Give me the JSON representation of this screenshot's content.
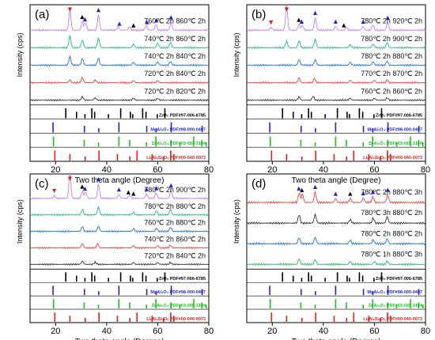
{
  "figure": {
    "xlabel": "Two theta angle (Degree)",
    "ylabel": "Intensity (cps)"
  },
  "colors": {
    "ZrO2": "#000000",
    "MgAl2O4": "#1f1fd6",
    "ZnAl2O4": "#19c319",
    "LiAlSi": "#e51c1c",
    "marker_LiAlSi": "#e51c1c",
    "marker_MgAl2O4": "#1f1fd6",
    "marker_ZrO2": "#000000"
  },
  "reference_patterns": [
    {
      "id": "ZrO2",
      "label": "ZrO₂ PDF#97-006-6785",
      "peaks": [
        24.0,
        28.2,
        31.5,
        34.2,
        35.3,
        40.7,
        45.5,
        49.3,
        50.2,
        54.1,
        55.4,
        59.8,
        62.8
      ]
    },
    {
      "id": "MgAl2O4",
      "label": "MgAl₂O₄ PDF#98-000-0407",
      "peaks": [
        19.0,
        31.3,
        36.9,
        44.8,
        55.7,
        59.4,
        65.3,
        77.4
      ]
    },
    {
      "id": "ZnAl2O4",
      "label": "ZnAl₂O₄ PDF#03-065-3104",
      "peaks": [
        19.2,
        31.2,
        36.8,
        44.8,
        49.0,
        55.6,
        59.3,
        65.2,
        68.7,
        74.1,
        77.3,
        79.0
      ]
    },
    {
      "id": "LiAlSi",
      "label": "LiₓAlₓSiₓOₓ PDF#00-040-0073",
      "peaks": [
        19.7,
        25.6,
        31.6,
        37.0,
        44.2,
        49.1,
        51.9,
        57.8,
        62.3,
        65.1,
        66.3
      ]
    }
  ],
  "chart_data": [
    {
      "type": "line",
      "panel": "(a)",
      "xlabel": "Two theta angle (Degree)",
      "ylabel": "Intensity (cps)",
      "xlim": [
        10,
        80
      ],
      "xticks": [
        20,
        40,
        60,
        80
      ],
      "series": [
        {
          "name": "720℃ 2h 820℃ 2h",
          "color": "#333333",
          "peaks": [
            {
              "x": 30.5,
              "h": 0.35
            },
            {
              "x": 35.5,
              "h": 0.25
            },
            {
              "x": 50.5,
              "h": 0.2
            },
            {
              "x": 60,
              "h": 0.18
            }
          ]
        },
        {
          "name": "720℃ 2h 840℃ 2h",
          "color": "#ff3b3b",
          "peaks": [
            {
              "x": 25.6,
              "h": 0.3
            },
            {
              "x": 30.5,
              "h": 0.55
            },
            {
              "x": 35.5,
              "h": 0.3
            },
            {
              "x": 50.5,
              "h": 0.2
            },
            {
              "x": 60,
              "h": 0.2
            }
          ]
        },
        {
          "name": "740℃ 2h 840℃ 2h",
          "color": "#1f6fe0",
          "peaks": [
            {
              "x": 25.6,
              "h": 0.9
            },
            {
              "x": 30.5,
              "h": 0.7
            },
            {
              "x": 36.8,
              "h": 0.75
            },
            {
              "x": 50.5,
              "h": 0.3
            },
            {
              "x": 60,
              "h": 0.35
            },
            {
              "x": 65,
              "h": 0.4
            }
          ]
        },
        {
          "name": "740℃ 2h 860℃ 2h",
          "color": "#1fbf6e",
          "peaks": [
            {
              "x": 25.6,
              "h": 1.2
            },
            {
              "x": 30.5,
              "h": 0.8
            },
            {
              "x": 36.8,
              "h": 1.0
            },
            {
              "x": 50.5,
              "h": 0.35
            },
            {
              "x": 60,
              "h": 0.45
            },
            {
              "x": 65,
              "h": 0.55
            }
          ]
        },
        {
          "name": "760℃ 2h 860℃ 2h",
          "color": "#c77dff",
          "peaks": [
            {
              "x": 25.6,
              "h": 2.2
            },
            {
              "x": 30.5,
              "h": 0.9
            },
            {
              "x": 31.8,
              "h": 0.8
            },
            {
              "x": 36.8,
              "h": 1.6
            },
            {
              "x": 44.5,
              "h": 0.4
            },
            {
              "x": 49,
              "h": 0.35
            },
            {
              "x": 55.5,
              "h": 0.45
            },
            {
              "x": 59.3,
              "h": 0.6
            },
            {
              "x": 65.2,
              "h": 0.85
            }
          ]
        }
      ],
      "markers": [
        {
          "x": 25.6,
          "type": "LiAlSi"
        },
        {
          "x": 30.4,
          "type": "ZrO2"
        },
        {
          "x": 31.5,
          "type": "MgAl2O4"
        },
        {
          "x": 36.8,
          "type": "MgAl2O4"
        },
        {
          "x": 45,
          "type": "MgAl2O4"
        },
        {
          "x": 50.5,
          "type": "ZrO2"
        },
        {
          "x": 55.8,
          "type": "MgAl2O4"
        },
        {
          "x": 59.5,
          "type": "MgAl2O4"
        },
        {
          "x": 65.2,
          "type": "MgAl2O4"
        }
      ]
    },
    {
      "type": "line",
      "panel": "(b)",
      "xlabel": "Two theta angle (Degree)",
      "ylabel": "Intensity (cps)",
      "xlim": [
        10,
        80
      ],
      "xticks": [
        20,
        40,
        60,
        80
      ],
      "series": [
        {
          "name": "760℃ 2h 860℃ 2h",
          "color": "#333333",
          "peaks": [
            {
              "x": 30.5,
              "h": 0.35
            },
            {
              "x": 36,
              "h": 0.4
            },
            {
              "x": 50.5,
              "h": 0.2
            },
            {
              "x": 60,
              "h": 0.2
            },
            {
              "x": 65,
              "h": 0.25
            }
          ]
        },
        {
          "name": "770℃ 2h 870℃ 2h",
          "color": "#ff3b3b",
          "peaks": [
            {
              "x": 30.5,
              "h": 0.5
            },
            {
              "x": 36.5,
              "h": 0.45
            },
            {
              "x": 50.5,
              "h": 0.25
            },
            {
              "x": 60,
              "h": 0.25
            },
            {
              "x": 65,
              "h": 0.3
            }
          ]
        },
        {
          "name": "780℃ 2h 880℃ 2h",
          "color": "#1f6fe0",
          "peaks": [
            {
              "x": 30.5,
              "h": 0.6
            },
            {
              "x": 36.8,
              "h": 0.6
            },
            {
              "x": 50.5,
              "h": 0.3
            },
            {
              "x": 59.5,
              "h": 0.35
            },
            {
              "x": 65,
              "h": 0.45
            }
          ]
        },
        {
          "name": "780℃ 2h 900℃ 2h",
          "color": "#1fbf6e",
          "peaks": [
            {
              "x": 25.6,
              "h": 0.7
            },
            {
              "x": 30.5,
              "h": 0.7
            },
            {
              "x": 36.8,
              "h": 0.9
            },
            {
              "x": 50.5,
              "h": 0.3
            },
            {
              "x": 59.5,
              "h": 0.4
            },
            {
              "x": 65,
              "h": 0.55
            }
          ]
        },
        {
          "name": "780℃ 2h 920℃ 2h",
          "color": "#c77dff",
          "peaks": [
            {
              "x": 25.6,
              "h": 2.6
            },
            {
              "x": 19.5,
              "h": 0.3
            },
            {
              "x": 30.5,
              "h": 0.6
            },
            {
              "x": 31.8,
              "h": 0.5
            },
            {
              "x": 36.8,
              "h": 1.3
            },
            {
              "x": 44.8,
              "h": 0.4
            },
            {
              "x": 49,
              "h": 0.3
            },
            {
              "x": 55.5,
              "h": 0.4
            },
            {
              "x": 59.4,
              "h": 0.55
            },
            {
              "x": 65.2,
              "h": 0.8
            }
          ]
        }
      ],
      "markers": [
        {
          "x": 19.5,
          "type": "LiAlSi"
        },
        {
          "x": 25.6,
          "type": "LiAlSi"
        },
        {
          "x": 30.4,
          "type": "ZrO2"
        },
        {
          "x": 31.5,
          "type": "MgAl2O4"
        },
        {
          "x": 36.8,
          "type": "MgAl2O4"
        },
        {
          "x": 44.8,
          "type": "MgAl2O4"
        },
        {
          "x": 48,
          "type": "ZrO2"
        },
        {
          "x": 55.6,
          "type": "MgAl2O4"
        },
        {
          "x": 65.2,
          "type": "MgAl2O4"
        }
      ]
    },
    {
      "type": "line",
      "panel": "(c)",
      "xlabel": "Two theta angle (Degree)",
      "ylabel": "Intensity (cps)",
      "xlim": [
        10,
        80
      ],
      "xticks": [
        20,
        40,
        60,
        80
      ],
      "series": [
        {
          "name": "720℃ 2h 840℃ 2h",
          "color": "#333333",
          "peaks": [
            {
              "x": 30.5,
              "h": 0.35
            },
            {
              "x": 35.5,
              "h": 0.25
            },
            {
              "x": 50.5,
              "h": 0.2
            },
            {
              "x": 60,
              "h": 0.2
            },
            {
              "x": 65,
              "h": 0.2
            }
          ]
        },
        {
          "name": "740℃ 2h 860℃ 2h",
          "color": "#ff3b3b",
          "peaks": [
            {
              "x": 30.5,
              "h": 0.5
            },
            {
              "x": 36.5,
              "h": 0.45
            },
            {
              "x": 50.5,
              "h": 0.25
            },
            {
              "x": 60,
              "h": 0.25
            },
            {
              "x": 65,
              "h": 0.3
            }
          ]
        },
        {
          "name": "760℃ 2h 880℃ 2h",
          "color": "#1f6fe0",
          "peaks": [
            {
              "x": 30.5,
              "h": 0.55
            },
            {
              "x": 36.8,
              "h": 0.6
            },
            {
              "x": 50.5,
              "h": 0.3
            },
            {
              "x": 59.5,
              "h": 0.35
            },
            {
              "x": 65,
              "h": 0.45
            }
          ]
        },
        {
          "name": "780℃ 2h 880℃ 2h",
          "color": "#1fbf6e",
          "peaks": [
            {
              "x": 30.5,
              "h": 0.6
            },
            {
              "x": 36.8,
              "h": 0.9
            },
            {
              "x": 50.5,
              "h": 0.3
            },
            {
              "x": 59.5,
              "h": 0.45
            },
            {
              "x": 65,
              "h": 0.6
            }
          ]
        },
        {
          "name": "780℃ 2h 900℃ 2h",
          "color": "#c77dff",
          "peaks": [
            {
              "x": 19.5,
              "h": 0.3
            },
            {
              "x": 25.6,
              "h": 2.8
            },
            {
              "x": 30.5,
              "h": 0.8
            },
            {
              "x": 31.8,
              "h": 0.7
            },
            {
              "x": 36.8,
              "h": 1.6
            },
            {
              "x": 44.8,
              "h": 0.45
            },
            {
              "x": 49,
              "h": 0.35
            },
            {
              "x": 55.6,
              "h": 0.5
            },
            {
              "x": 59.4,
              "h": 0.6
            },
            {
              "x": 65.2,
              "h": 0.9
            }
          ]
        }
      ],
      "markers": [
        {
          "x": 19.5,
          "type": "LiAlSi"
        },
        {
          "x": 25.6,
          "type": "LiAlSi"
        },
        {
          "x": 30.4,
          "type": "ZrO2"
        },
        {
          "x": 31.5,
          "type": "MgAl2O4"
        },
        {
          "x": 36.8,
          "type": "MgAl2O4"
        },
        {
          "x": 44.8,
          "type": "MgAl2O4"
        },
        {
          "x": 48.5,
          "type": "ZrO2"
        },
        {
          "x": 50.5,
          "type": "ZrO2"
        },
        {
          "x": 55.6,
          "type": "MgAl2O4"
        },
        {
          "x": 59.4,
          "type": "MgAl2O4"
        },
        {
          "x": 65.2,
          "type": "MgAl2O4"
        }
      ]
    },
    {
      "type": "line",
      "panel": "(d)",
      "xlabel": "Two theta angle (Degree)",
      "ylabel": "Intensity (cps)",
      "xlim": [
        10,
        80
      ],
      "xticks": [
        20,
        40,
        60,
        80
      ],
      "series": [
        {
          "name": "780℃ 1h 880℃ 3h",
          "color": "#1fbf6e",
          "peaks": [
            {
              "x": 30.5,
              "h": 0.5
            },
            {
              "x": 36.8,
              "h": 0.45
            },
            {
              "x": 50.5,
              "h": 0.25
            },
            {
              "x": 60,
              "h": 0.25
            },
            {
              "x": 65,
              "h": 0.3
            }
          ]
        },
        {
          "name": "780℃ 2h 880℃ 2h",
          "color": "#1f6fe0",
          "peaks": [
            {
              "x": 30.5,
              "h": 0.55
            },
            {
              "x": 36.8,
              "h": 0.6
            },
            {
              "x": 50.5,
              "h": 0.3
            },
            {
              "x": 59.5,
              "h": 0.35
            },
            {
              "x": 65,
              "h": 0.45
            }
          ]
        },
        {
          "name": "780℃ 3h 880℃ 2h",
          "color": "#333333",
          "peaks": [
            {
              "x": 30.5,
              "h": 0.75
            },
            {
              "x": 36.8,
              "h": 0.8
            },
            {
              "x": 50.5,
              "h": 0.3
            },
            {
              "x": 59.5,
              "h": 0.45
            },
            {
              "x": 65,
              "h": 0.6
            }
          ]
        },
        {
          "name": "780℃ 2h 880℃ 3h",
          "color": "#ff3b3b",
          "peaks": [
            {
              "x": 30.5,
              "h": 0.85
            },
            {
              "x": 31.8,
              "h": 0.75
            },
            {
              "x": 36.8,
              "h": 0.95
            },
            {
              "x": 44.8,
              "h": 0.35
            },
            {
              "x": 50.5,
              "h": 0.35
            },
            {
              "x": 55.6,
              "h": 0.4
            },
            {
              "x": 59.4,
              "h": 0.5
            },
            {
              "x": 65.2,
              "h": 0.7
            }
          ]
        }
      ],
      "markers": [
        {
          "x": 30.4,
          "type": "MgAl2O4"
        },
        {
          "x": 31.6,
          "type": "ZrO2"
        },
        {
          "x": 36.8,
          "type": "MgAl2O4"
        },
        {
          "x": 44.8,
          "type": "MgAl2O4"
        },
        {
          "x": 50.5,
          "type": "ZrO2"
        },
        {
          "x": 55.6,
          "type": "MgAl2O4"
        },
        {
          "x": 59.4,
          "type": "MgAl2O4"
        },
        {
          "x": 65.2,
          "type": "MgAl2O4"
        }
      ]
    }
  ]
}
